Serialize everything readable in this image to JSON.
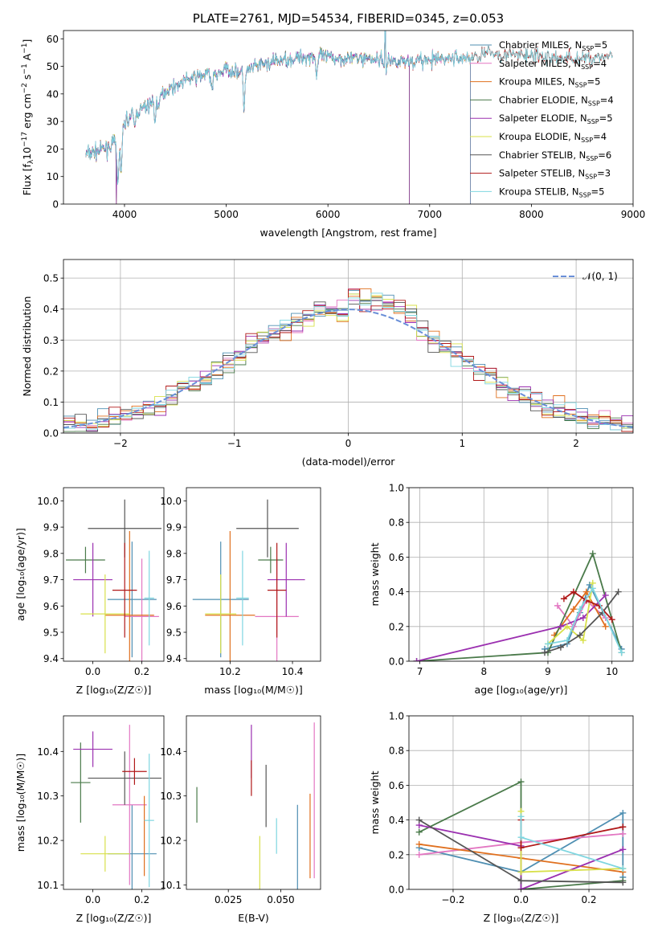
{
  "colors": {
    "chabrier_miles": "#4f8fb2",
    "salpeter_miles": "#e377c2",
    "kroupa_miles": "#e0701f",
    "chabrier_elodie": "#4a7a4a",
    "salpeter_elodie": "#9b30b0",
    "kroupa_elodie": "#d8e04a",
    "chabrier_stelib": "#555555",
    "salpeter_stelib": "#b01818",
    "kroupa_stelib": "#7fd6e0",
    "gauss": "#6a8fd8",
    "grid": "#b0b0b0"
  },
  "chart_data": [
    {
      "id": "spectrum",
      "type": "line",
      "title": "PLATE=2761, MJD=54534, FIBERID=0345, z=0.053",
      "xlabel": "wavelength [Angstrom, rest frame]",
      "ylabel": "Flux [f_λ10^-17 erg cm^-2 s^-1 A^-1]",
      "xlim": [
        3400,
        9000
      ],
      "ylim": [
        0,
        63
      ],
      "xticks": [
        "4000",
        "5000",
        "6000",
        "7000",
        "8000",
        "9000"
      ],
      "yticks": [
        "0",
        "10",
        "20",
        "30",
        "40",
        "50",
        "60"
      ],
      "grid": false,
      "legend_position": "upper right",
      "legend": [
        {
          "name": "Chabrier MILES, N",
          "sub": "SSP",
          "tail": "=5",
          "color_key": "chabrier_miles"
        },
        {
          "name": "Salpeter MILES, N",
          "sub": "SSP",
          "tail": "=4",
          "color_key": "salpeter_miles"
        },
        {
          "name": "Kroupa MILES, N",
          "sub": "SSP",
          "tail": "=5",
          "color_key": "kroupa_miles"
        },
        {
          "name": "Chabrier ELODIE, N",
          "sub": "SSP",
          "tail": "=4",
          "color_key": "chabrier_elodie"
        },
        {
          "name": "Salpeter ELODIE, N",
          "sub": "SSP",
          "tail": "=5",
          "color_key": "salpeter_elodie"
        },
        {
          "name": "Kroupa ELODIE, N",
          "sub": "SSP",
          "tail": "=4",
          "color_key": "kroupa_elodie"
        },
        {
          "name": "Chabrier STELIB, N",
          "sub": "SSP",
          "tail": "=6",
          "color_key": "chabrier_stelib"
        },
        {
          "name": "Salpeter STELIB, N",
          "sub": "SSP",
          "tail": "=3",
          "color_key": "salpeter_stelib"
        },
        {
          "name": "Kroupa STELIB, N",
          "sub": "SSP",
          "tail": "=5",
          "color_key": "kroupa_stelib"
        }
      ],
      "continuum": [
        [
          3620,
          18
        ],
        [
          3800,
          20
        ],
        [
          3900,
          22
        ],
        [
          3950,
          21
        ],
        [
          4000,
          30
        ],
        [
          4100,
          33
        ],
        [
          4200,
          35
        ],
        [
          4300,
          38
        ],
        [
          4400,
          41
        ],
        [
          4500,
          43
        ],
        [
          4600,
          45
        ],
        [
          4700,
          46
        ],
        [
          4800,
          47
        ],
        [
          4900,
          47
        ],
        [
          5000,
          49
        ],
        [
          5100,
          48
        ],
        [
          5200,
          48
        ],
        [
          5300,
          50
        ],
        [
          5500,
          52
        ],
        [
          5700,
          53
        ],
        [
          5900,
          54
        ],
        [
          6000,
          53
        ],
        [
          6200,
          53
        ],
        [
          6400,
          53
        ],
        [
          6600,
          52
        ],
        [
          6800,
          52
        ],
        [
          7000,
          52
        ],
        [
          7200,
          53
        ],
        [
          7400,
          53
        ],
        [
          7600,
          55
        ],
        [
          7800,
          54
        ],
        [
          8000,
          54
        ],
        [
          8200,
          53
        ],
        [
          8400,
          53
        ],
        [
          8600,
          53
        ],
        [
          8800,
          54
        ]
      ],
      "absorption": [
        [
          3934,
          13
        ],
        [
          3968,
          12
        ],
        [
          4101,
          5
        ],
        [
          4300,
          8
        ],
        [
          4340,
          5
        ],
        [
          4861,
          6
        ],
        [
          5175,
          12
        ],
        [
          5890,
          7
        ],
        [
          6563,
          8
        ]
      ],
      "features": {
        "h_alpha_peak": [
          6563,
          63
        ],
        "miles_end": 7400,
        "elodie_end": 6800,
        "elodie_drop": 3920
      }
    },
    {
      "id": "residuals",
      "type": "bar",
      "xlabel": "(data-model)/error",
      "ylabel": "Normed distribution",
      "xlim": [
        -2.5,
        2.5
      ],
      "ylim": [
        0,
        0.56
      ],
      "xticks": [
        "−2",
        "−1",
        "0",
        "1",
        "2"
      ],
      "yticks": [
        "0.0",
        "0.1",
        "0.2",
        "0.3",
        "0.4",
        "0.5"
      ],
      "grid": true,
      "legend": [
        {
          "name": "𝒩(0, 1)",
          "color_key": "gauss"
        }
      ],
      "bin_width": 0.1
    },
    {
      "id": "age_vs_Z",
      "type": "scatter",
      "xlabel": "Z [log₁₀(Z/Z☉)]",
      "ylabel": "age  [log₁₀(age/yr)]",
      "xlim": [
        -0.12,
        0.29
      ],
      "ylim": [
        9.39,
        10.05
      ],
      "xticks": [
        "0.0",
        "0.2"
      ],
      "yticks": [
        "9.4",
        "9.5",
        "9.6",
        "9.7",
        "9.8",
        "9.9",
        "10.0"
      ],
      "grid": false,
      "points": [
        {
          "color_key": "chabrier_miles",
          "x": 0.16,
          "xe": 0.1,
          "y": 9.625,
          "ye": 0.22
        },
        {
          "color_key": "salpeter_miles",
          "x": 0.2,
          "xe": 0.07,
          "y": 9.56,
          "ye": 0.22
        },
        {
          "color_key": "kroupa_miles",
          "x": 0.15,
          "xe": 0.1,
          "y": 9.565,
          "ye": 0.32
        },
        {
          "color_key": "chabrier_elodie",
          "x": -0.03,
          "xe": 0.08,
          "y": 9.775,
          "ye": 0.05
        },
        {
          "color_key": "salpeter_elodie",
          "x": 0.0,
          "xe": 0.08,
          "y": 9.7,
          "ye": 0.14
        },
        {
          "color_key": "kroupa_elodie",
          "x": 0.05,
          "xe": 0.1,
          "y": 9.57,
          "ye": 0.15
        },
        {
          "color_key": "chabrier_stelib",
          "x": 0.13,
          "xe": 0.15,
          "y": 9.895,
          "ye": 0.11
        },
        {
          "color_key": "salpeter_stelib",
          "x": 0.13,
          "xe": 0.05,
          "y": 9.66,
          "ye": 0.18
        },
        {
          "color_key": "kroupa_stelib",
          "x": 0.23,
          "xe": 0.02,
          "y": 9.63,
          "ye": 0.18
        }
      ]
    },
    {
      "id": "age_vs_mass",
      "type": "scatter",
      "xlabel": "mass [log₁₀(M/M☉)]",
      "ylabel": "",
      "xlim": [
        10.06,
        10.49
      ],
      "ylim": [
        9.39,
        10.05
      ],
      "xticks": [
        "10.2",
        "10.4"
      ],
      "yticks": [
        "9.4",
        "9.5",
        "9.6",
        "9.7",
        "9.8",
        "9.9",
        "10.0"
      ],
      "grid": false,
      "points": [
        {
          "color_key": "chabrier_miles",
          "x": 10.17,
          "xe": 0.09,
          "y": 9.625,
          "ye": 0.22
        },
        {
          "color_key": "salpeter_miles",
          "x": 10.35,
          "xe": 0.07,
          "y": 9.56,
          "ye": 0.22
        },
        {
          "color_key": "kroupa_miles",
          "x": 10.2,
          "xe": 0.08,
          "y": 9.565,
          "ye": 0.32
        },
        {
          "color_key": "chabrier_elodie",
          "x": 10.33,
          "xe": 0.04,
          "y": 9.775,
          "ye": 0.05
        },
        {
          "color_key": "salpeter_elodie",
          "x": 10.38,
          "xe": 0.06,
          "y": 9.7,
          "ye": 0.14
        },
        {
          "color_key": "kroupa_elodie",
          "x": 10.17,
          "xe": 0.05,
          "y": 9.57,
          "ye": 0.15
        },
        {
          "color_key": "chabrier_stelib",
          "x": 10.32,
          "xe": 0.1,
          "y": 9.895,
          "ye": 0.11
        },
        {
          "color_key": "salpeter_stelib",
          "x": 10.35,
          "xe": 0.03,
          "y": 9.66,
          "ye": 0.18
        },
        {
          "color_key": "kroupa_stelib",
          "x": 10.24,
          "xe": 0.02,
          "y": 9.63,
          "ye": 0.18
        }
      ]
    },
    {
      "id": "weight_vs_age",
      "type": "line",
      "xlabel": "age  [log₁₀(age/yr)]",
      "ylabel": "mass weight",
      "xlim": [
        6.83,
        10.33
      ],
      "ylim": [
        0,
        1
      ],
      "xticks": [
        "7",
        "8",
        "9",
        "10"
      ],
      "yticks": [
        "0.0",
        "0.2",
        "0.4",
        "0.6",
        "0.8",
        "1.0"
      ],
      "grid": true,
      "series": [
        {
          "color_key": "chabrier_miles",
          "points": [
            [
              8.95,
              0.07
            ],
            [
              9.3,
              0.1
            ],
            [
              9.5,
              0.28
            ],
            [
              9.65,
              0.44
            ],
            [
              10.15,
              0.07
            ]
          ]
        },
        {
          "color_key": "salpeter_miles",
          "points": [
            [
              9.15,
              0.32
            ],
            [
              9.4,
              0.2
            ],
            [
              9.6,
              0.35
            ],
            [
              9.9,
              0.25
            ]
          ]
        },
        {
          "color_key": "kroupa_miles",
          "points": [
            [
              9.1,
              0.15
            ],
            [
              9.4,
              0.3
            ],
            [
              9.6,
              0.4
            ],
            [
              9.9,
              0.2
            ]
          ]
        },
        {
          "color_key": "chabrier_elodie",
          "points": [
            [
              6.95,
              0.0
            ],
            [
              9.0,
              0.05
            ],
            [
              9.7,
              0.62
            ],
            [
              10.15,
              0.05
            ]
          ]
        },
        {
          "color_key": "salpeter_elodie",
          "points": [
            [
              6.95,
              0.0
            ],
            [
              9.2,
              0.2
            ],
            [
              9.55,
              0.25
            ],
            [
              9.9,
              0.38
            ]
          ]
        },
        {
          "color_key": "kroupa_elodie",
          "points": [
            [
              9.0,
              0.1
            ],
            [
              9.3,
              0.2
            ],
            [
              9.55,
              0.12
            ],
            [
              9.7,
              0.45
            ]
          ]
        },
        {
          "color_key": "chabrier_stelib",
          "points": [
            [
              8.95,
              0.05
            ],
            [
              9.2,
              0.08
            ],
            [
              9.5,
              0.15
            ],
            [
              9.85,
              0.28
            ],
            [
              10.1,
              0.4
            ]
          ]
        },
        {
          "color_key": "salpeter_stelib",
          "points": [
            [
              9.25,
              0.36
            ],
            [
              9.4,
              0.4
            ],
            [
              9.6,
              0.35
            ],
            [
              9.8,
              0.32
            ],
            [
              10.0,
              0.24
            ]
          ]
        },
        {
          "color_key": "kroupa_stelib",
          "points": [
            [
              9.0,
              0.1
            ],
            [
              9.3,
              0.12
            ],
            [
              9.5,
              0.3
            ],
            [
              9.7,
              0.42
            ],
            [
              10.15,
              0.05
            ]
          ]
        }
      ]
    },
    {
      "id": "mass_vs_Z",
      "type": "scatter",
      "xlabel": "Z [log₁₀(Z/Z☉)]",
      "ylabel": "mass [log₁₀(M/M☉)]",
      "xlim": [
        -0.12,
        0.29
      ],
      "ylim": [
        10.09,
        10.48
      ],
      "xticks": [
        "0.0",
        "0.2"
      ],
      "yticks": [
        "10.1",
        "10.2",
        "10.3",
        "10.4"
      ],
      "grid": false,
      "points": [
        {
          "color_key": "chabrier_miles",
          "x": 0.16,
          "xe": 0.1,
          "y": 10.17,
          "ye": 0.11
        },
        {
          "color_key": "salpeter_miles",
          "x": 0.15,
          "xe": 0.07,
          "y": 10.28,
          "ye": 0.18
        },
        {
          "color_key": "kroupa_miles",
          "x": 0.21,
          "xe": 0.0,
          "y": 10.21,
          "ye": 0.09
        },
        {
          "color_key": "chabrier_elodie",
          "x": -0.05,
          "xe": 0.04,
          "y": 10.33,
          "ye": 0.09
        },
        {
          "color_key": "salpeter_elodie",
          "x": 0.0,
          "xe": 0.08,
          "y": 10.405,
          "ye": 0.04
        },
        {
          "color_key": "kroupa_elodie",
          "x": 0.05,
          "xe": 0.1,
          "y": 10.17,
          "ye": 0.04
        },
        {
          "color_key": "chabrier_stelib",
          "x": 0.13,
          "xe": 0.15,
          "y": 10.34,
          "ye": 0.06
        },
        {
          "color_key": "salpeter_stelib",
          "x": 0.17,
          "xe": 0.05,
          "y": 10.355,
          "ye": 0.03
        },
        {
          "color_key": "kroupa_stelib",
          "x": 0.23,
          "xe": 0.02,
          "y": 10.245,
          "ye": 0.15
        }
      ]
    },
    {
      "id": "mass_vs_ebv",
      "type": "scatter",
      "xlabel": "E(B-V)",
      "ylabel": "",
      "xlim": [
        0.005,
        0.069
      ],
      "ylim": [
        10.09,
        10.48
      ],
      "xticks": [
        "0.025",
        "0.050"
      ],
      "yticks": [
        "10.1",
        "10.2",
        "10.3",
        "10.4"
      ],
      "grid": false,
      "points": [
        {
          "color_key": "chabrier_miles",
          "x": 0.058,
          "ye": 0.095,
          "y": 10.185
        },
        {
          "color_key": "salpeter_miles",
          "x": 0.066,
          "ye": 0.175,
          "y": 10.29
        },
        {
          "color_key": "kroupa_miles",
          "x": 0.064,
          "ye": 0.095,
          "y": 10.21
        },
        {
          "color_key": "chabrier_elodie",
          "x": 0.01,
          "ye": 0.04,
          "y": 10.28
        },
        {
          "color_key": "salpeter_elodie",
          "x": 0.036,
          "ye": 0.06,
          "y": 10.4
        },
        {
          "color_key": "kroupa_elodie",
          "x": 0.04,
          "ye": 0.06,
          "y": 10.15
        },
        {
          "color_key": "chabrier_stelib",
          "x": 0.043,
          "ye": 0.07,
          "y": 10.3
        },
        {
          "color_key": "salpeter_stelib",
          "x": 0.036,
          "ye": 0.04,
          "y": 10.34
        },
        {
          "color_key": "kroupa_stelib",
          "x": 0.048,
          "ye": 0.04,
          "y": 10.21
        }
      ]
    },
    {
      "id": "weight_vs_Z",
      "type": "line",
      "xlabel": "Z [log₁₀(Z/Z☉)]",
      "ylabel": "mass weight",
      "xlim": [
        -0.33,
        0.33
      ],
      "ylim": [
        0,
        1
      ],
      "xticks": [
        "−0.2",
        "0.0",
        "0.2"
      ],
      "yticks": [
        "0.0",
        "0.2",
        "0.4",
        "0.6",
        "0.8",
        "1.0"
      ],
      "grid": true,
      "series": [
        {
          "color_key": "chabrier_miles",
          "points": [
            [
              -0.3,
              0.24
            ],
            [
              0.0,
              0.1
            ],
            [
              0.3,
              0.44
            ],
            [
              0.3,
              0.07
            ]
          ]
        },
        {
          "color_key": "salpeter_miles",
          "points": [
            [
              -0.3,
              0.2
            ],
            [
              0.0,
              0.27
            ],
            [
              0.3,
              0.32
            ]
          ]
        },
        {
          "color_key": "kroupa_miles",
          "points": [
            [
              -0.3,
              0.26
            ],
            [
              0.0,
              0.18
            ],
            [
              0.3,
              0.1
            ]
          ]
        },
        {
          "color_key": "chabrier_elodie",
          "points": [
            [
              -0.3,
              0.33
            ],
            [
              0.0,
              0.62
            ],
            [
              0.0,
              0.0
            ],
            [
              0.3,
              0.05
            ]
          ]
        },
        {
          "color_key": "salpeter_elodie",
          "points": [
            [
              -0.3,
              0.37
            ],
            [
              0.0,
              0.25
            ],
            [
              0.0,
              0.0
            ],
            [
              0.3,
              0.23
            ]
          ]
        },
        {
          "color_key": "kroupa_elodie",
          "points": [
            [
              0.0,
              0.45
            ],
            [
              0.0,
              0.1
            ],
            [
              0.3,
              0.12
            ]
          ]
        },
        {
          "color_key": "chabrier_stelib",
          "points": [
            [
              -0.3,
              0.4
            ],
            [
              0.0,
              0.05
            ],
            [
              0.3,
              0.04
            ]
          ]
        },
        {
          "color_key": "salpeter_stelib",
          "points": [
            [
              0.0,
              0.4
            ],
            [
              0.0,
              0.24
            ],
            [
              0.3,
              0.36
            ]
          ]
        },
        {
          "color_key": "kroupa_stelib",
          "points": [
            [
              0.0,
              0.42
            ],
            [
              0.0,
              0.3
            ],
            [
              0.3,
              0.12
            ]
          ]
        }
      ]
    }
  ]
}
